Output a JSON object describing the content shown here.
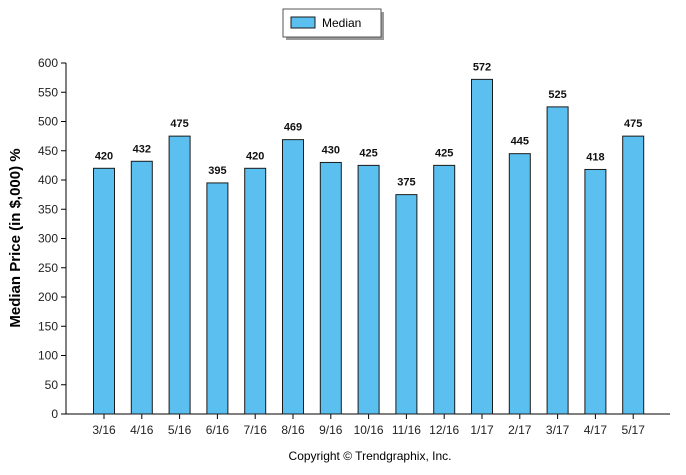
{
  "chart_data": {
    "type": "bar",
    "categories": [
      "3/16",
      "4/16",
      "5/16",
      "6/16",
      "7/16",
      "8/16",
      "9/16",
      "10/16",
      "11/16",
      "12/16",
      "1/17",
      "2/17",
      "3/17",
      "4/17",
      "5/17"
    ],
    "series": [
      {
        "name": "Median",
        "values": [
          420,
          432,
          475,
          395,
          420,
          469,
          430,
          425,
          375,
          425,
          572,
          445,
          525,
          418,
          475
        ]
      }
    ],
    "ylabel": "Median Price (in $,000) %",
    "xlabel": "",
    "ylim": [
      0,
      600
    ],
    "yticks": [
      0,
      50,
      100,
      150,
      200,
      250,
      300,
      350,
      400,
      450,
      500,
      550,
      600
    ],
    "legend_position": "top-center",
    "grid": false,
    "bar_color": "#5bc0f0",
    "bar_border_color": "#1a1a1a",
    "data_labels": true
  },
  "footer": {
    "copyright": "Copyright © Trendgraphix, Inc."
  }
}
